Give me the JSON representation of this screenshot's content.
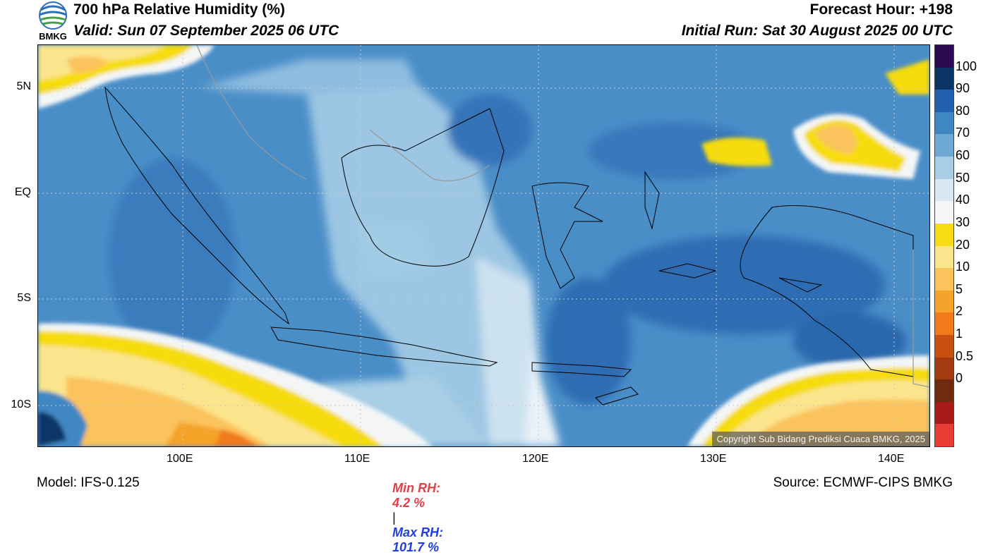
{
  "header": {
    "logo_text": "BMKG",
    "title": "700 hPa Relative Humidity (%)",
    "valid": "Valid: Sun 07 September 2025 06 UTC",
    "forecast_hour": "Forecast Hour: +198",
    "initial_run": "Initial Run: Sat 30 August 2025 00 UTC"
  },
  "map": {
    "lat_labels": [
      "5N",
      "EQ",
      "5S",
      "10S"
    ],
    "lon_labels": [
      "100E",
      "110E",
      "120E",
      "130E",
      "140E"
    ],
    "copyright": "Copyright Sub Bidang Prediksi Cuaca BMKG, 2025"
  },
  "colorbar": {
    "labels": [
      "100",
      "90",
      "80",
      "70",
      "60",
      "50",
      "40",
      "30",
      "20",
      "10",
      "5",
      "2",
      "1",
      "0.5",
      "0"
    ],
    "colors": [
      "#2a0b52",
      "#0c3466",
      "#2060ae",
      "#3f87c3",
      "#6ea9d3",
      "#a8cde5",
      "#d9e8f2",
      "#f4f6f6",
      "#f6dc10",
      "#fbe48c",
      "#fbc35c",
      "#f6a32c",
      "#f07a1c",
      "#c85010",
      "#a33a10",
      "#6f2a10",
      "#aa1a1a",
      "#e63c32"
    ]
  },
  "footer": {
    "model": "Model: IFS-0.125",
    "min_label": "Min RH:",
    "min_value": "4.2 %",
    "separator": "|",
    "max_label": "Max RH:",
    "max_value": "101.7 %",
    "source": "Source: ECMWF-CIPS BMKG"
  }
}
